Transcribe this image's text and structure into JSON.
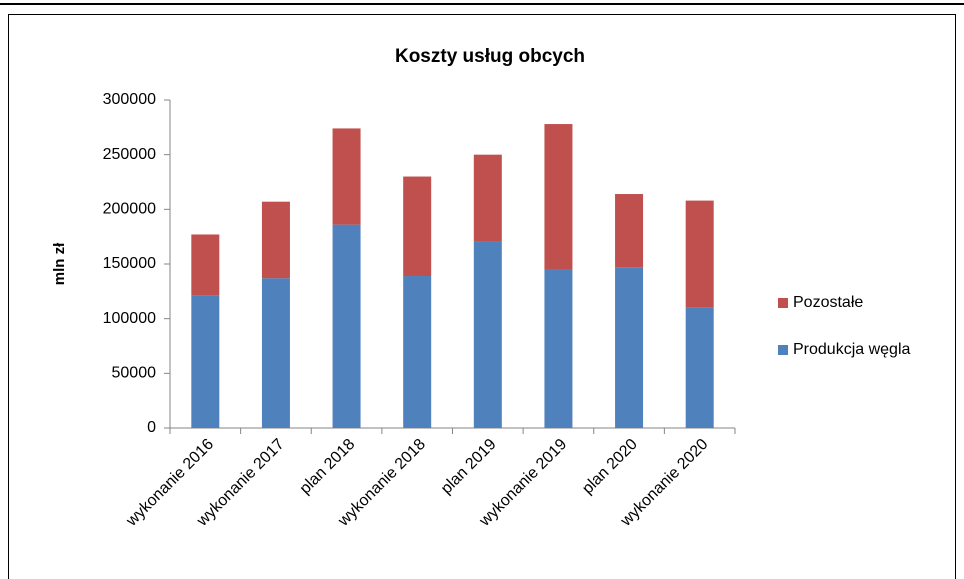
{
  "chart_data": {
    "type": "stacked-bar",
    "title": "Koszty usług obcych",
    "y_label": "mln zł",
    "categories": [
      "wykonanie 2016",
      "wykonanie 2017",
      "plan 2018",
      "wykonanie 2018",
      "plan 2019",
      "wykonanie 2019",
      "plan 2020",
      "wykonanie 2020"
    ],
    "series": [
      {
        "name": "Produkcja węgla",
        "color": "#4f81bd",
        "values": [
          121000,
          137000,
          186000,
          139000,
          171000,
          145000,
          147000,
          110000
        ]
      },
      {
        "name": "Pozostałe",
        "color": "#c0504d",
        "values": [
          56000,
          70000,
          88000,
          91000,
          79000,
          133000,
          67000,
          98000
        ]
      }
    ],
    "ylim": [
      0,
      300000
    ],
    "yticks": [
      0,
      50000,
      100000,
      150000,
      200000,
      250000,
      300000
    ],
    "legend": "right"
  }
}
